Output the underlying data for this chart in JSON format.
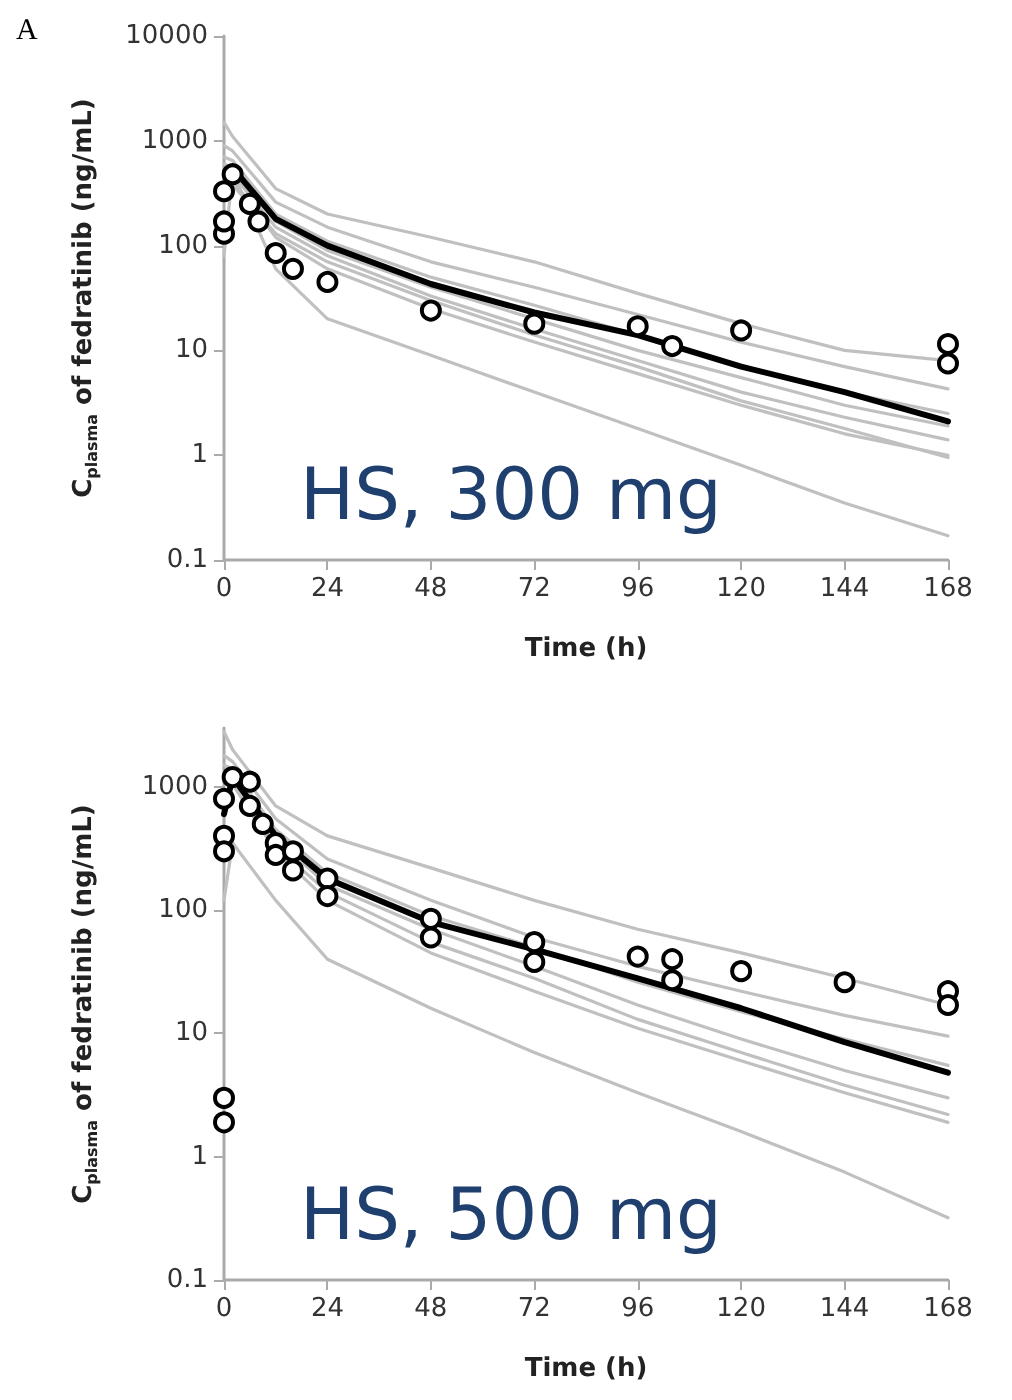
{
  "chart_data": [
    {
      "type": "line",
      "xlabel": "Time (h)",
      "ylabel": "C$_{plasma}$ of fedratinib (ng/mL)",
      "annotations": [
        "A",
        "HS, 300 mg"
      ],
      "xlim": [
        0,
        168
      ],
      "xticks": [
        0,
        24,
        48,
        72,
        96,
        120,
        144,
        168
      ],
      "ylim": [
        0.1,
        10000
      ],
      "yticks": [
        0.1,
        1,
        10,
        100,
        1000,
        10000
      ],
      "log": "y",
      "grid": false,
      "line_style": "solid",
      "marker": "none",
      "series": [
        {
          "color": "#c0c0c0",
          "x": [
            0,
            2,
            12,
            24,
            48,
            72,
            96,
            120,
            144,
            168
          ],
          "values": [
            1500,
            1100,
            350,
            200,
            120,
            70,
            35,
            18,
            10,
            8
          ]
        },
        {
          "color": "#c0c0c0",
          "x": [
            0,
            2,
            12,
            24,
            48,
            72,
            96,
            120,
            144,
            168
          ],
          "values": [
            900,
            800,
            260,
            150,
            70,
            40,
            22,
            12,
            7,
            4.3
          ]
        },
        {
          "color": "#c0c0c0",
          "x": [
            0,
            2,
            12,
            24,
            48,
            72,
            96,
            120,
            144,
            168
          ],
          "values": [
            700,
            650,
            200,
            110,
            50,
            27,
            14,
            7,
            4,
            2.5
          ]
        },
        {
          "color": "#c0c0c0",
          "x": [
            0,
            2,
            12,
            24,
            48,
            72,
            96,
            120,
            144,
            168
          ],
          "values": [
            600,
            550,
            170,
            90,
            40,
            20,
            10,
            5.5,
            3,
            1.9
          ]
        },
        {
          "color": "#c0c0c0",
          "x": [
            0,
            2,
            12,
            24,
            48,
            72,
            96,
            120,
            144,
            168
          ],
          "values": [
            500,
            480,
            150,
            80,
            33,
            16,
            8,
            4,
            2.3,
            1.4
          ]
        },
        {
          "color": "#c0c0c0",
          "x": [
            0,
            2,
            12,
            24,
            48,
            72,
            96,
            120,
            144,
            168
          ],
          "values": [
            450,
            420,
            120,
            60,
            25,
            12,
            6,
            3,
            1.6,
            1.0
          ]
        },
        {
          "color": "#c0c0c0",
          "x": [
            0,
            2,
            12,
            24,
            48,
            72,
            96,
            120,
            144,
            168
          ],
          "values": [
            400,
            380,
            130,
            70,
            30,
            14,
            7,
            3.3,
            1.8,
            0.95
          ]
        },
        {
          "color": "#c0c0c0",
          "x": [
            0,
            2,
            12,
            24,
            48,
            72,
            96,
            120,
            144,
            168
          ],
          "values": [
            80,
            500,
            60,
            20,
            9,
            4,
            1.8,
            0.8,
            0.35,
            0.17
          ]
        },
        {
          "color": "#000000",
          "x": [
            0,
            2,
            12,
            24,
            48,
            72,
            96,
            120,
            144,
            168
          ],
          "values": [
            300,
            550,
            180,
            100,
            43,
            23,
            14,
            7,
            4,
            2.1
          ]
        },
        {
          "type": "scatter",
          "marker": "circle",
          "color": "#000000",
          "x": [
            0,
            0,
            0,
            2,
            6,
            8,
            12,
            16,
            24,
            48,
            72,
            96,
            104,
            120,
            168,
            168
          ],
          "values": [
            130,
            170,
            330,
            480,
            250,
            170,
            85,
            60,
            45,
            24,
            18,
            17,
            11,
            15.5,
            11.5,
            7.5
          ]
        }
      ]
    },
    {
      "type": "line",
      "xlabel": "Time (h)",
      "ylabel": "C$_{plasma}$ of fedratinib (ng/mL)",
      "annotations": [
        "HS, 500 mg"
      ],
      "xlim": [
        0,
        168
      ],
      "xticks": [
        0,
        24,
        48,
        72,
        96,
        120,
        144,
        168
      ],
      "ylim": [
        0.1,
        3000
      ],
      "yticks": [
        0.1,
        1,
        10,
        100,
        1000
      ],
      "log": "y",
      "grid": false,
      "line_style": "solid",
      "marker": "none",
      "series": [
        {
          "color": "#c0c0c0",
          "x": [
            0,
            2,
            12,
            24,
            48,
            72,
            96,
            120,
            144,
            168
          ],
          "values": [
            2800,
            2000,
            700,
            400,
            220,
            120,
            70,
            45,
            28,
            17
          ]
        },
        {
          "color": "#c0c0c0",
          "x": [
            0,
            2,
            12,
            24,
            48,
            72,
            96,
            120,
            144,
            168
          ],
          "values": [
            1800,
            1600,
            550,
            260,
            120,
            60,
            35,
            22,
            14,
            9.5
          ]
        },
        {
          "color": "#c0c0c0",
          "x": [
            0,
            2,
            12,
            24,
            48,
            72,
            96,
            120,
            144,
            168
          ],
          "values": [
            1500,
            1400,
            450,
            200,
            90,
            50,
            26,
            15,
            9,
            5.5
          ]
        },
        {
          "color": "#c0c0c0",
          "x": [
            0,
            2,
            12,
            24,
            48,
            72,
            96,
            120,
            144,
            168
          ],
          "values": [
            1300,
            1250,
            380,
            160,
            70,
            35,
            17,
            9,
            5,
            3
          ]
        },
        {
          "color": "#c0c0c0",
          "x": [
            0,
            2,
            12,
            24,
            48,
            72,
            96,
            120,
            144,
            168
          ],
          "values": [
            1200,
            1150,
            330,
            140,
            55,
            28,
            13,
            7,
            3.8,
            2.2
          ]
        },
        {
          "color": "#c0c0c0",
          "x": [
            0,
            2,
            12,
            24,
            48,
            72,
            96,
            120,
            144,
            168
          ],
          "values": [
            1100,
            1050,
            300,
            120,
            45,
            22,
            11,
            6,
            3.3,
            1.9
          ]
        },
        {
          "color": "#c0c0c0",
          "x": [
            0,
            2,
            12,
            24,
            48,
            72,
            96,
            120,
            144,
            168
          ],
          "values": [
            120,
            350,
            120,
            40,
            16,
            7,
            3.3,
            1.6,
            0.75,
            0.32
          ]
        },
        {
          "color": "#000000",
          "x": [
            0,
            2,
            12,
            24,
            48,
            72,
            96,
            120,
            144,
            168
          ],
          "values": [
            600,
            1200,
            400,
            180,
            80,
            48,
            28,
            16,
            8.5,
            4.8
          ]
        },
        {
          "type": "scatter",
          "marker": "circle",
          "color": "#000000",
          "x": [
            0,
            0,
            0,
            0,
            0,
            2,
            6,
            6,
            9,
            12,
            12,
            16,
            16,
            24,
            24,
            48,
            48,
            72,
            72,
            96,
            104,
            104,
            120,
            144,
            168,
            168
          ],
          "values": [
            3,
            1.9,
            400,
            300,
            800,
            1200,
            1100,
            700,
            500,
            350,
            280,
            300,
            210,
            180,
            130,
            85,
            60,
            55,
            38,
            42,
            40,
            27,
            32,
            26,
            22,
            17
          ]
        }
      ]
    }
  ]
}
